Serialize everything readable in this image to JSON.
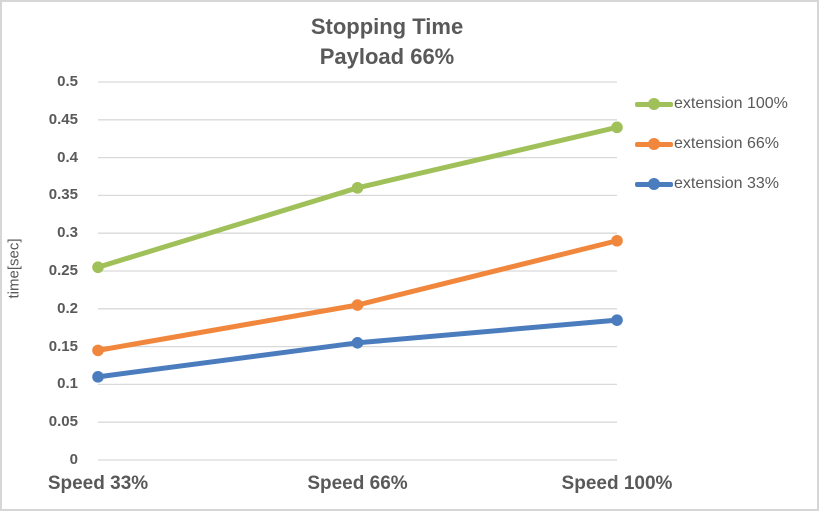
{
  "chart_data": {
    "type": "line",
    "title": "Stopping Time",
    "subtitle": "Payload 66%",
    "ylabel": "time[sec]",
    "xlabel": "",
    "categories": [
      "Speed 33%",
      "Speed 66%",
      "Speed 100%"
    ],
    "series": [
      {
        "name": "extension 100%",
        "color": "#a0c05a",
        "values": [
          0.255,
          0.36,
          0.44
        ]
      },
      {
        "name": "extension 66%",
        "color": "#f0873c",
        "values": [
          0.145,
          0.205,
          0.29
        ]
      },
      {
        "name": "extension 33%",
        "color": "#4b7dbe",
        "values": [
          0.11,
          0.155,
          0.185
        ]
      }
    ],
    "ylim": [
      0,
      0.5
    ],
    "ytick_step": 0.05,
    "yticks": [
      0,
      0.05,
      0.1,
      0.15,
      0.2,
      0.25,
      0.3,
      0.35,
      0.4,
      0.45,
      0.5
    ],
    "grid": true,
    "legend_position": "right",
    "marker": "circle",
    "colors": {
      "text": "#595959",
      "grid": "#d9d9d9",
      "border": "#d6d6d6",
      "background": "#ffffff"
    }
  }
}
